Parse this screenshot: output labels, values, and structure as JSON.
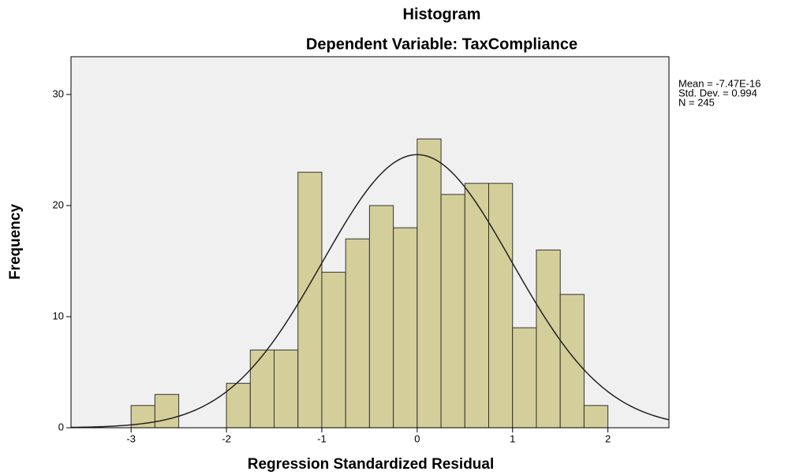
{
  "chart_data": {
    "type": "histogram",
    "title": "Histogram",
    "subtitle": "Dependent Variable: TaxCompliance",
    "x_label": "Regression Standardized Residual",
    "y_label": "Frequency",
    "bins": [
      -3,
      -2.75,
      -2.5,
      -2.25,
      -2,
      -1.75,
      -1.5,
      -1.25,
      -1,
      -0.75,
      -0.5,
      -0.25,
      0,
      0.25,
      0.5,
      0.75,
      1,
      1.25,
      1.5,
      1.75,
      2
    ],
    "values": [
      2,
      3,
      0,
      0,
      4,
      7,
      7,
      23,
      14,
      17,
      20,
      18,
      26,
      21,
      22,
      22,
      9,
      16,
      12,
      2
    ],
    "color": "#d4cf9a",
    "stats": [
      {
        "value": -7.47e-16,
        "label": "Mean = -7.47E-16"
      },
      {
        "value": 0.994,
        "label": "Std. Dev. = 0.994"
      },
      {
        "value": 245,
        "label": "N = 245"
      }
    ],
    "xlim": [
      -3.63,
      2.64
    ],
    "ylim": [
      0,
      33.4
    ],
    "xticks": [
      -3,
      -2,
      -1,
      0,
      1,
      2
    ],
    "yticks": [
      0,
      10,
      20,
      30
    ]
  }
}
